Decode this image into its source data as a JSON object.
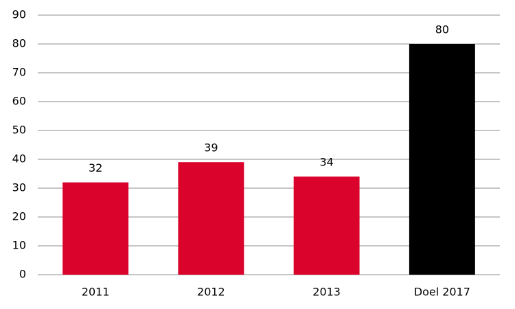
{
  "chart_data": {
    "type": "bar",
    "categories": [
      "2011",
      "2012",
      "2013",
      "Doel 2017"
    ],
    "values": [
      32,
      39,
      34,
      80
    ],
    "colors": [
      "#d9032b",
      "#d9032b",
      "#d9032b",
      "#000000"
    ],
    "ylim": [
      0,
      90
    ],
    "yticks": [
      0,
      10,
      20,
      30,
      40,
      50,
      60,
      70,
      80,
      90
    ],
    "grid": true
  }
}
